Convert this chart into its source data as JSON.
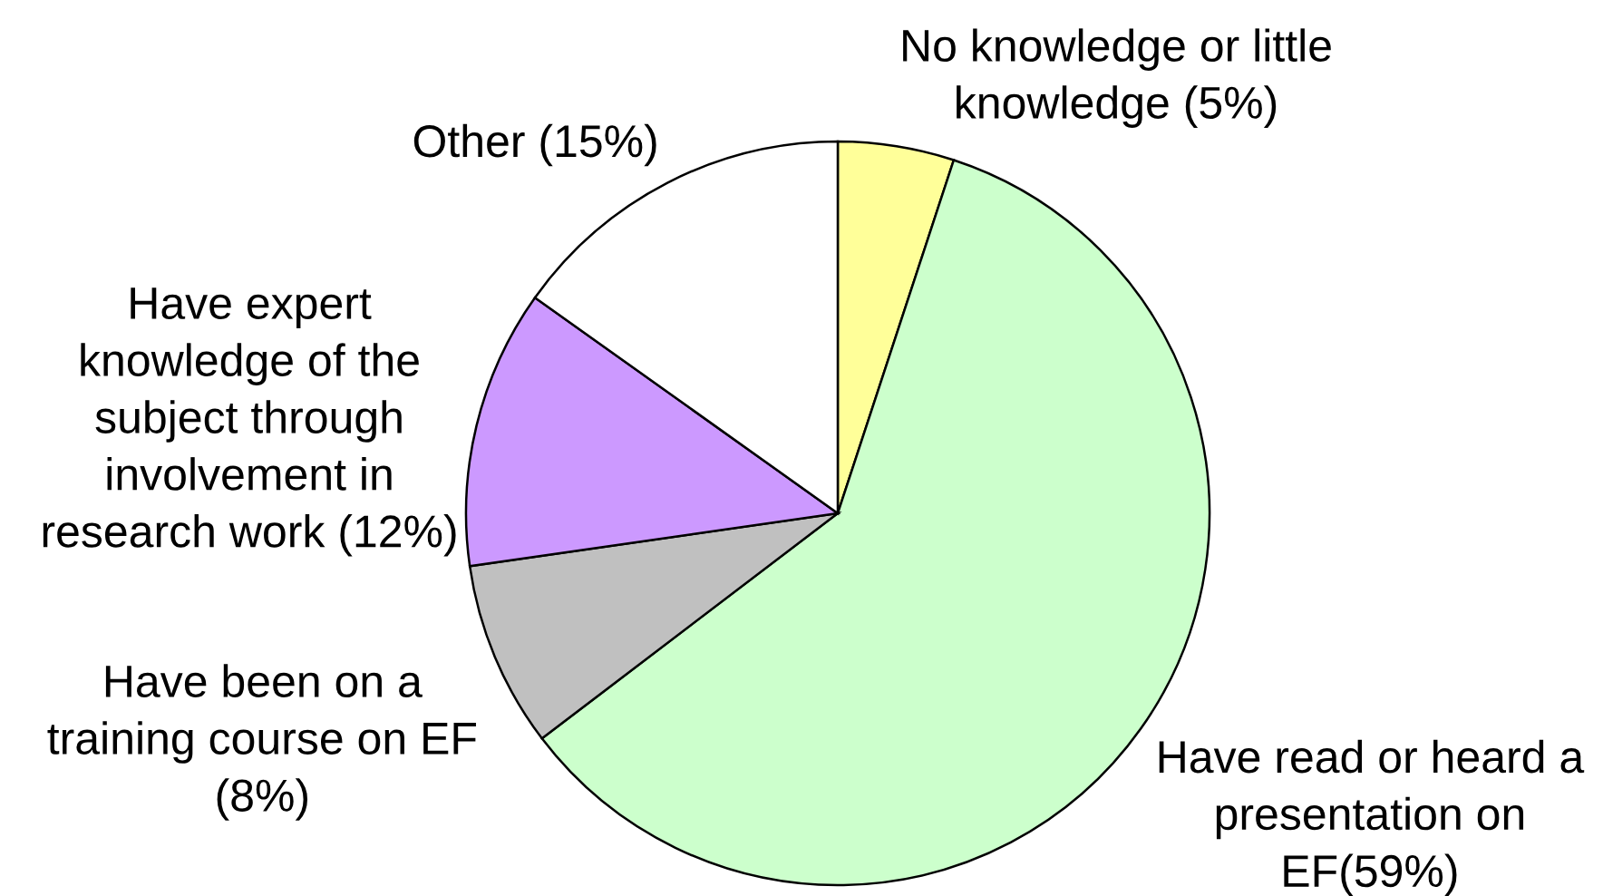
{
  "chart_data": {
    "type": "pie",
    "categories": [
      "No knowledge or little\nknowledge (5%)",
      "Have read or heard a\npresentation on\nEF(59%)",
      "Have been on a\ntraining course on EF\n(8%)",
      "Have expert\nknowledge of the\nsubject through\ninvolvement in\nresearch work (12%)",
      "Other (15%)"
    ],
    "values": [
      5,
      59,
      8,
      12,
      15
    ],
    "colors": [
      "#ffff99",
      "#ccffcc",
      "#c0c0c0",
      "#cc99ff",
      "#ffffff"
    ]
  }
}
